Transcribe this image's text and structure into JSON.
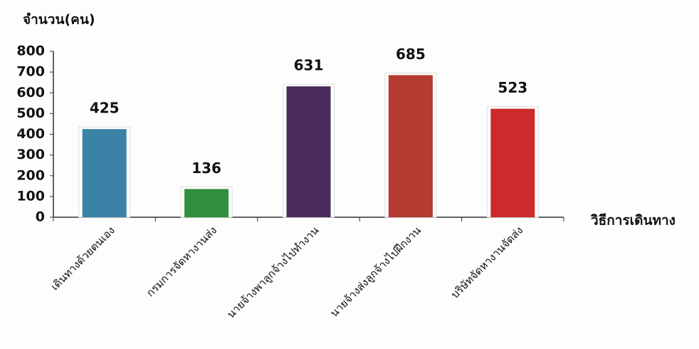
{
  "chart_data": {
    "type": "bar",
    "y_label": "จำนวน(คน)",
    "x_label": "วิธีการเดินทาง",
    "categories": [
      "เดินทางด้วยตนเอง",
      "กรมการจัดหางานส่ง",
      "นายจ้างพาลูกจ้างไปทำงาน",
      "นายจ้างส่งลูกจ้างไปฝึกงาน",
      "บริษัทจัดหางานจัดส่ง"
    ],
    "values": [
      425,
      136,
      631,
      685,
      523
    ],
    "colors": [
      "#3a82a6",
      "#2f8f3f",
      "#4a2c5c",
      "#b53a2f",
      "#cc2b2b"
    ],
    "ylim": [
      0,
      800
    ],
    "yticks": [
      0,
      100,
      200,
      300,
      400,
      500,
      600,
      700,
      800
    ]
  }
}
